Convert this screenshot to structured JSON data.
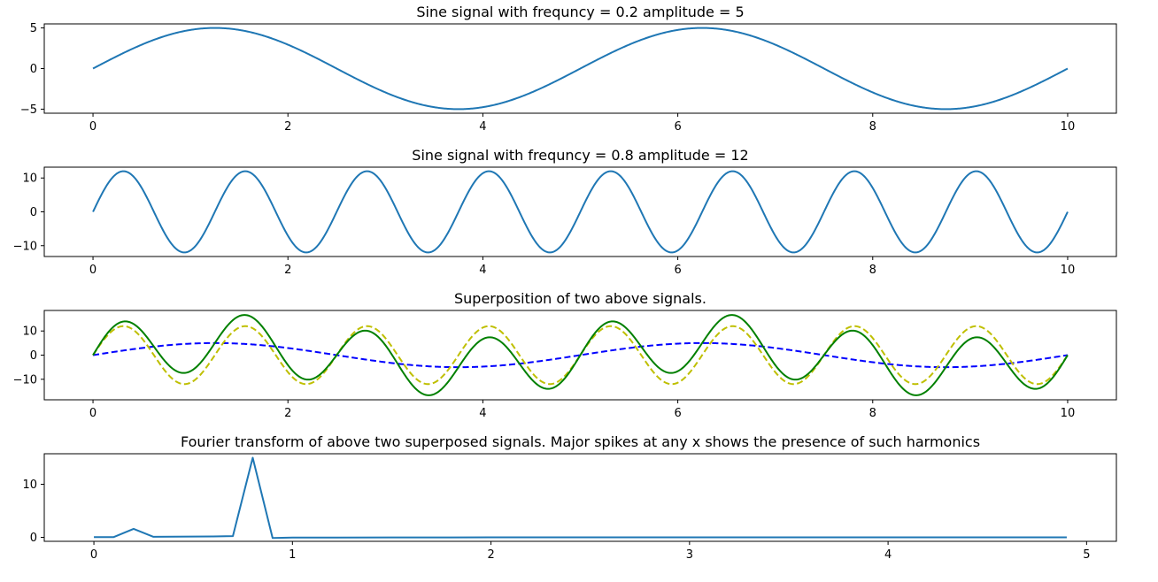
{
  "chart_data": [
    {
      "type": "line",
      "title": "Sine signal with frequncy = 0.2 amplitude = 5",
      "xlim": [
        -0.5,
        10.5
      ],
      "ylim": [
        -5.5,
        5.5
      ],
      "xticks": [
        0,
        2,
        4,
        6,
        8,
        10
      ],
      "xtick_labels": [
        "0",
        "2",
        "4",
        "6",
        "8",
        "10"
      ],
      "yticks": [
        5,
        0,
        -5
      ],
      "ytick_labels": [
        "5",
        "0",
        "−5"
      ],
      "grid": false,
      "series": [
        {
          "function": "5*sin(2*pi*0.2*x)",
          "x_range": [
            0,
            10
          ],
          "color": "#1f77b4",
          "style": "solid"
        }
      ]
    },
    {
      "type": "line",
      "title": "Sine signal with frequncy = 0.8 amplitude = 12",
      "xlim": [
        -0.5,
        10.5
      ],
      "ylim": [
        -13.2,
        13.2
      ],
      "xticks": [
        0,
        2,
        4,
        6,
        8,
        10
      ],
      "xtick_labels": [
        "0",
        "2",
        "4",
        "6",
        "8",
        "10"
      ],
      "yticks": [
        10,
        0,
        -10
      ],
      "ytick_labels": [
        "10",
        "0",
        "−10"
      ],
      "grid": false,
      "series": [
        {
          "function": "12*sin(2*pi*0.8*x)",
          "x_range": [
            0,
            10
          ],
          "color": "#1f77b4",
          "style": "solid"
        }
      ]
    },
    {
      "type": "line",
      "title": "Superposition of two above signals.",
      "xlim": [
        -0.5,
        10.5
      ],
      "ylim": [
        -18.5,
        18.5
      ],
      "xticks": [
        0,
        2,
        4,
        6,
        8,
        10
      ],
      "xtick_labels": [
        "0",
        "2",
        "4",
        "6",
        "8",
        "10"
      ],
      "yticks": [
        10,
        0,
        -10
      ],
      "ytick_labels": [
        "10",
        "0",
        "−10"
      ],
      "grid": false,
      "series": [
        {
          "function": "5*sin(2*pi*0.2*x)",
          "x_range": [
            0,
            10
          ],
          "color": "#0000ff",
          "style": "dashed"
        },
        {
          "function": "12*sin(2*pi*0.8*x)",
          "x_range": [
            0,
            10
          ],
          "color": "#bfbf00",
          "style": "dashed"
        },
        {
          "function": "5*sin(2*pi*0.2*x)+12*sin(2*pi*0.8*x)",
          "x_range": [
            0,
            10
          ],
          "color": "#008000",
          "style": "solid"
        }
      ]
    },
    {
      "type": "line",
      "title": "Fourier transform of above two superposed signals. Major spikes at any x shows the presence of such harmonics",
      "xlim": [
        -0.25,
        5.15
      ],
      "ylim": [
        -0.75,
        15.75
      ],
      "xticks": [
        0,
        1,
        2,
        3,
        4,
        5
      ],
      "xtick_labels": [
        "0",
        "1",
        "2",
        "3",
        "4",
        "5"
      ],
      "yticks": [
        10,
        0
      ],
      "ytick_labels": [
        "10",
        "0"
      ],
      "grid": false,
      "series": [
        {
          "color": "#1f77b4",
          "style": "solid",
          "x": [
            0,
            0.1,
            0.2,
            0.3,
            0.4,
            0.5,
            0.6,
            0.7,
            0.8,
            0.9,
            1.0,
            1.5,
            2.0,
            2.5,
            3.0,
            3.5,
            4.0,
            4.5,
            4.9
          ],
          "y": [
            0.05,
            0.05,
            1.6,
            0.1,
            0.12,
            0.14,
            0.17,
            0.22,
            15.0,
            -0.12,
            -0.05,
            -0.02,
            -0.01,
            -0.01,
            -0.01,
            -0.01,
            -0.01,
            -0.01,
            -0.01
          ]
        }
      ]
    }
  ]
}
